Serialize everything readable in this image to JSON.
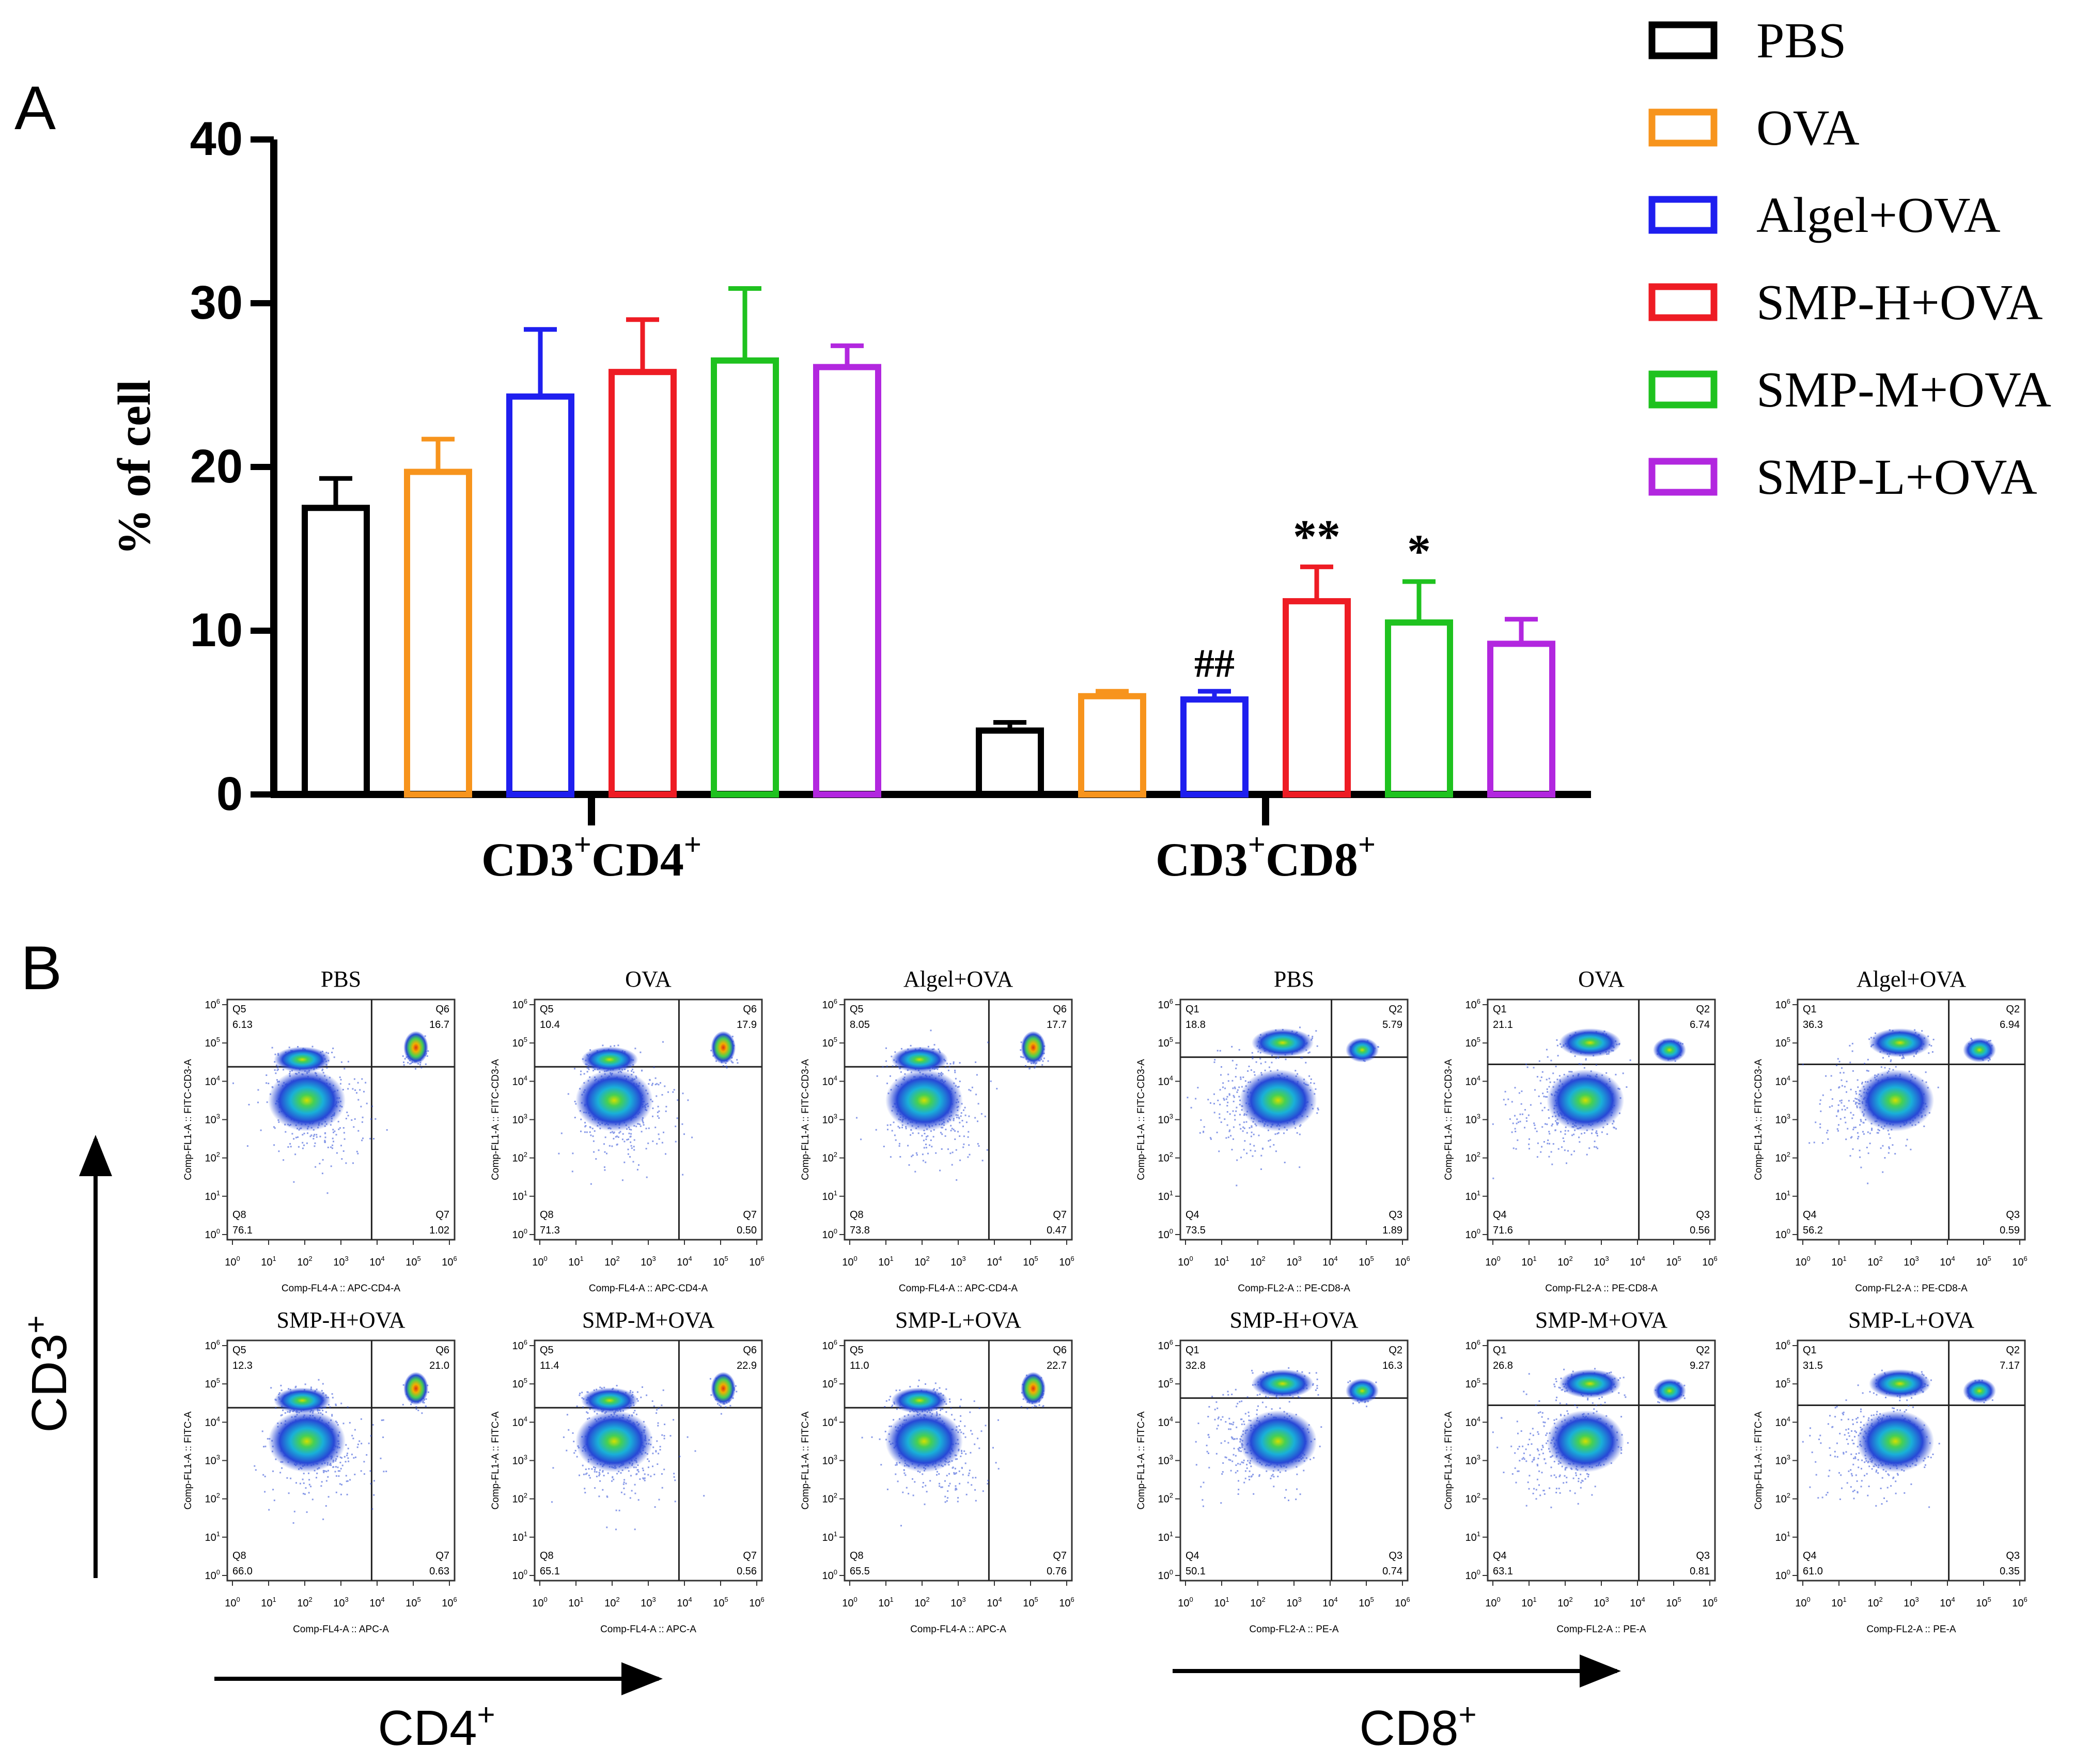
{
  "figure": {
    "panel_a_label": "A",
    "panel_b_label": "B"
  },
  "chart_data": {
    "type": "bar",
    "title": "",
    "xlabel": "",
    "ylabel": "% of cell",
    "ylim": [
      0,
      40
    ],
    "yticks": [
      "0",
      "10",
      "20",
      "30",
      "40"
    ],
    "categories": [
      {
        "base": "CD3",
        "mid": "CD4",
        "sup": "+"
      },
      {
        "base": "CD3",
        "mid": "CD8",
        "sup": "+"
      }
    ],
    "series": [
      {
        "name": "PBS",
        "color": "#000000",
        "values": [
          17.5,
          3.9
        ],
        "errors": [
          1.8,
          0.5
        ],
        "annotations": [
          "",
          ""
        ]
      },
      {
        "name": "OVA",
        "color": "#f7941d",
        "values": [
          19.7,
          6.0
        ],
        "errors": [
          2.0,
          0.3
        ],
        "annotations": [
          "",
          ""
        ]
      },
      {
        "name": "Algel+OVA",
        "color": "#1f1fef",
        "values": [
          24.3,
          5.8
        ],
        "errors": [
          4.1,
          0.5
        ],
        "annotations": [
          "",
          "##"
        ]
      },
      {
        "name": "SMP-H+OVA",
        "color": "#ee1c24",
        "values": [
          25.8,
          11.8
        ],
        "errors": [
          3.2,
          2.1
        ],
        "annotations": [
          "",
          "**"
        ]
      },
      {
        "name": "SMP-M+OVA",
        "color": "#1fc21f",
        "values": [
          26.5,
          10.5
        ],
        "errors": [
          4.4,
          2.5
        ],
        "annotations": [
          "",
          "*"
        ]
      },
      {
        "name": "SMP-L+OVA",
        "color": "#b227df",
        "values": [
          26.1,
          9.2
        ],
        "errors": [
          1.3,
          1.5
        ],
        "annotations": [
          "",
          ""
        ]
      }
    ]
  },
  "panel_b": {
    "y_axis_label": "CD3",
    "y_axis_sup": "+",
    "cd4_axis_label": "CD4",
    "cd8_axis_label": "CD8",
    "axis_sup": "+",
    "decade_ticks": [
      "0",
      "1",
      "2",
      "3",
      "4",
      "5",
      "6"
    ],
    "tick_base": "10",
    "plots": [
      {
        "title": "PBS",
        "xlabel": "Comp-FL4-A :: APC-CD4-A",
        "ylabel": "Comp-FL1-A :: FITC-CD3-A",
        "quads": [
          {
            "name": "Q5",
            "value": "6.13"
          },
          {
            "name": "Q6",
            "value": "16.7"
          },
          {
            "name": "Q8",
            "value": "76.1"
          },
          {
            "name": "Q7",
            "value": "1.02"
          }
        ]
      },
      {
        "title": "OVA",
        "xlabel": "Comp-FL4-A :: APC-CD4-A",
        "ylabel": "Comp-FL1-A :: FITC-CD3-A",
        "quads": [
          {
            "name": "Q5",
            "value": "10.4"
          },
          {
            "name": "Q6",
            "value": "17.9"
          },
          {
            "name": "Q8",
            "value": "71.3"
          },
          {
            "name": "Q7",
            "value": "0.50"
          }
        ]
      },
      {
        "title": "Algel+OVA",
        "xlabel": "Comp-FL4-A :: APC-CD4-A",
        "ylabel": "Comp-FL1-A :: FITC-CD3-A",
        "quads": [
          {
            "name": "Q5",
            "value": "8.05"
          },
          {
            "name": "Q6",
            "value": "17.7"
          },
          {
            "name": "Q8",
            "value": "73.8"
          },
          {
            "name": "Q7",
            "value": "0.47"
          }
        ]
      },
      {
        "title": "PBS",
        "xlabel": "Comp-FL2-A :: PE-CD8-A",
        "ylabel": "Comp-FL1-A :: FITC-CD3-A",
        "quads": [
          {
            "name": "Q1",
            "value": "18.8"
          },
          {
            "name": "Q2",
            "value": "5.79"
          },
          {
            "name": "Q4",
            "value": "73.5"
          },
          {
            "name": "Q3",
            "value": "1.89"
          }
        ]
      },
      {
        "title": "OVA",
        "xlabel": "Comp-FL2-A :: PE-CD8-A",
        "ylabel": "Comp-FL1-A :: FITC-CD3-A",
        "quads": [
          {
            "name": "Q1",
            "value": "21.1"
          },
          {
            "name": "Q2",
            "value": "6.74"
          },
          {
            "name": "Q4",
            "value": "71.6"
          },
          {
            "name": "Q3",
            "value": "0.56"
          }
        ]
      },
      {
        "title": "Algel+OVA",
        "xlabel": "Comp-FL2-A :: PE-CD8-A",
        "ylabel": "Comp-FL1-A :: FITC-CD3-A",
        "quads": [
          {
            "name": "Q1",
            "value": "36.3"
          },
          {
            "name": "Q2",
            "value": "6.94"
          },
          {
            "name": "Q4",
            "value": "56.2"
          },
          {
            "name": "Q3",
            "value": "0.59"
          }
        ]
      },
      {
        "title": "SMP-H+OVA",
        "xlabel": "Comp-FL4-A :: APC-A",
        "ylabel": "Comp-FL1-A :: FITC-A",
        "quads": [
          {
            "name": "Q5",
            "value": "12.3"
          },
          {
            "name": "Q6",
            "value": "21.0"
          },
          {
            "name": "Q8",
            "value": "66.0"
          },
          {
            "name": "Q7",
            "value": "0.63"
          }
        ]
      },
      {
        "title": "SMP-M+OVA",
        "xlabel": "Comp-FL4-A :: APC-A",
        "ylabel": "Comp-FL1-A :: FITC-A",
        "quads": [
          {
            "name": "Q5",
            "value": "11.4"
          },
          {
            "name": "Q6",
            "value": "22.9"
          },
          {
            "name": "Q8",
            "value": "65.1"
          },
          {
            "name": "Q7",
            "value": "0.56"
          }
        ]
      },
      {
        "title": "SMP-L+OVA",
        "xlabel": "Comp-FL4-A :: APC-A",
        "ylabel": "Comp-FL1-A :: FITC-A",
        "quads": [
          {
            "name": "Q5",
            "value": "11.0"
          },
          {
            "name": "Q6",
            "value": "22.7"
          },
          {
            "name": "Q8",
            "value": "65.5"
          },
          {
            "name": "Q7",
            "value": "0.76"
          }
        ]
      },
      {
        "title": "SMP-H+OVA",
        "xlabel": "Comp-FL2-A :: PE-A",
        "ylabel": "Comp-FL1-A :: FITC-A",
        "quads": [
          {
            "name": "Q1",
            "value": "32.8"
          },
          {
            "name": "Q2",
            "value": "16.3"
          },
          {
            "name": "Q4",
            "value": "50.1"
          },
          {
            "name": "Q3",
            "value": "0.74"
          }
        ]
      },
      {
        "title": "SMP-M+OVA",
        "xlabel": "Comp-FL2-A :: PE-A",
        "ylabel": "Comp-FL1-A :: FITC-A",
        "quads": [
          {
            "name": "Q1",
            "value": "26.8"
          },
          {
            "name": "Q2",
            "value": "9.27"
          },
          {
            "name": "Q4",
            "value": "63.1"
          },
          {
            "name": "Q3",
            "value": "0.81"
          }
        ]
      },
      {
        "title": "SMP-L+OVA",
        "xlabel": "Comp-FL2-A :: PE-A",
        "ylabel": "Comp-FL1-A :: FITC-A",
        "quads": [
          {
            "name": "Q1",
            "value": "31.5"
          },
          {
            "name": "Q2",
            "value": "7.17"
          },
          {
            "name": "Q4",
            "value": "61.0"
          },
          {
            "name": "Q3",
            "value": "0.35"
          }
        ]
      }
    ]
  }
}
